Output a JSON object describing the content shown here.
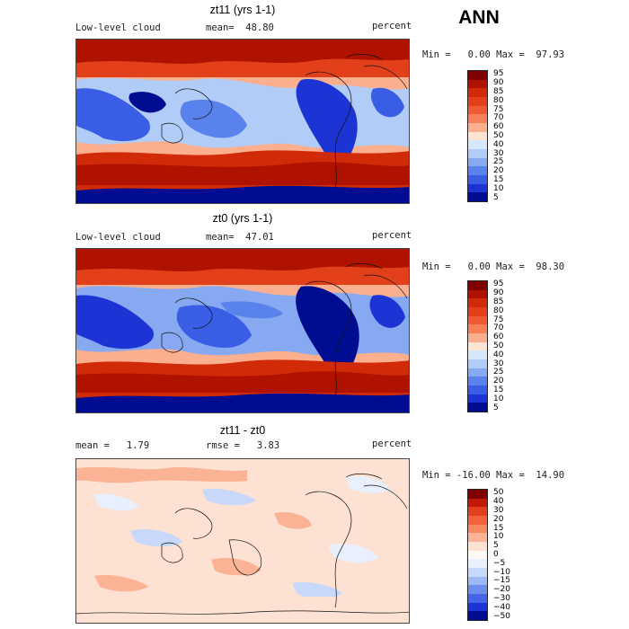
{
  "season": "ANN",
  "panels": [
    {
      "title": "zt11 (yrs 1-1)",
      "left_label": "Low-level cloud",
      "stat_label": "mean=",
      "stat_value": "48.80",
      "units": "percent",
      "range_text": "Min =   0.00 Max =  97.93",
      "levels": [
        "95",
        "90",
        "85",
        "80",
        "75",
        "70",
        "60",
        "50",
        "40",
        "30",
        "25",
        "20",
        "15",
        "10",
        "5"
      ],
      "kind": "cloud"
    },
    {
      "title": "zt0 (yrs 1-1)",
      "left_label": "Low-level cloud",
      "stat_label": "mean=",
      "stat_value": "47.01",
      "units": "percent",
      "range_text": "Min =   0.00 Max =  98.30",
      "levels": [
        "95",
        "90",
        "85",
        "80",
        "75",
        "70",
        "60",
        "50",
        "40",
        "30",
        "25",
        "20",
        "15",
        "10",
        "5"
      ],
      "kind": "cloud"
    },
    {
      "title": "zt11 - zt0",
      "left_label": "mean =   1.79",
      "stat_label": "rmse =",
      "stat_value": "3.83",
      "units": "percent",
      "range_text": "Min = -16.00 Max =  14.90",
      "levels": [
        "50",
        "40",
        "30",
        "20",
        "15",
        "10",
        "5",
        "0",
        "−5",
        "−10",
        "−15",
        "−20",
        "−30",
        "−40",
        "−50"
      ],
      "kind": "diff"
    }
  ],
  "palette": {
    "cloud": [
      "#7e0000",
      "#b01200",
      "#d02a08",
      "#e2401a",
      "#f05a32",
      "#f88058",
      "#fcaf8e",
      "#fde3d2",
      "#d6e6fb",
      "#b0ccf7",
      "#86a9f1",
      "#5a82ec",
      "#3a5de6",
      "#1c34d4",
      "#000d90"
    ],
    "diff": [
      "#7e0000",
      "#c01a06",
      "#e2401a",
      "#f2623c",
      "#f88862",
      "#fcb294",
      "#fde2d4",
      "#fff8f4",
      "#e8f0fe",
      "#c8d8fa",
      "#9eb8f4",
      "#6e8eee",
      "#4466e6",
      "#1c34d4",
      "#000d90"
    ]
  }
}
